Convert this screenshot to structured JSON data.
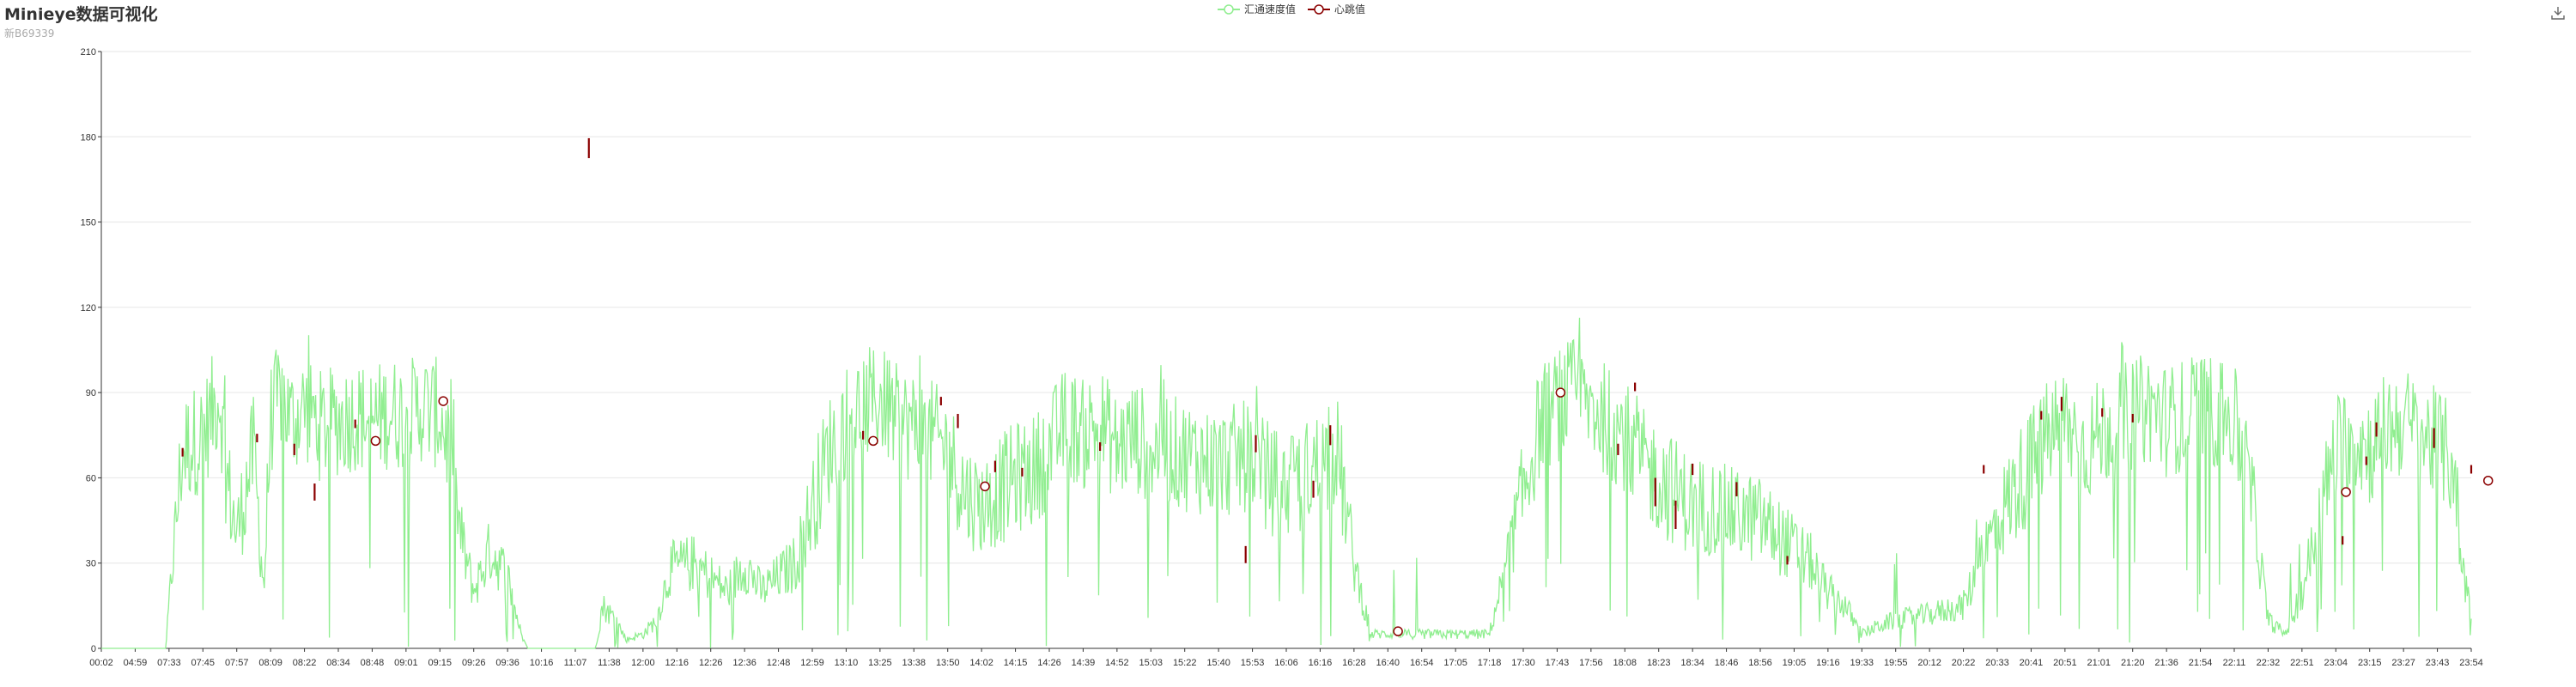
{
  "title": "Minieye数据可视化",
  "subtitle": "新B69339",
  "toolbox": {
    "icon": "download-icon"
  },
  "colors": {
    "speed": "#90ee90",
    "heart": "#8b0000",
    "grid": "#e6e6e6",
    "axis": "#333333"
  },
  "chart_data": {
    "type": "line",
    "legend": [
      "汇通速度值",
      "心跳值"
    ],
    "legend_position": "top-center",
    "grid": true,
    "ylim": [
      0,
      210
    ],
    "yticks": [
      0,
      30,
      60,
      90,
      120,
      150,
      180,
      210
    ],
    "x_tick_labels": [
      "00:02",
      "04:59",
      "07:33",
      "07:45",
      "07:57",
      "08:09",
      "08:22",
      "08:34",
      "08:48",
      "09:01",
      "09:15",
      "09:26",
      "09:36",
      "10:16",
      "11:07",
      "11:38",
      "12:00",
      "12:16",
      "12:26",
      "12:36",
      "12:48",
      "12:59",
      "13:10",
      "13:25",
      "13:38",
      "13:50",
      "14:02",
      "14:15",
      "14:26",
      "14:39",
      "14:52",
      "15:03",
      "15:22",
      "15:40",
      "15:53",
      "16:06",
      "16:16",
      "16:28",
      "16:40",
      "16:54",
      "17:05",
      "17:18",
      "17:30",
      "17:43",
      "17:56",
      "18:08",
      "18:23",
      "18:34",
      "18:46",
      "18:56",
      "19:05",
      "19:16",
      "19:33",
      "19:55",
      "20:12",
      "20:22",
      "20:33",
      "20:41",
      "20:51",
      "21:01",
      "21:20",
      "21:36",
      "21:54",
      "22:11",
      "22:32",
      "22:51",
      "23:04",
      "23:15",
      "23:27",
      "23:43",
      "23:54"
    ],
    "series": [
      {
        "name": "汇通速度值",
        "color": "#90ee90",
        "profile": [
          [
            0,
            0
          ],
          [
            1.9,
            0
          ],
          [
            2.1,
            30
          ],
          [
            2.4,
            70
          ],
          [
            3,
            75
          ],
          [
            3.5,
            90
          ],
          [
            3.7,
            60
          ],
          [
            4,
            40
          ],
          [
            4.5,
            70
          ],
          [
            4.8,
            20
          ],
          [
            5,
            80
          ],
          [
            5.3,
            90
          ],
          [
            5.6,
            80
          ],
          [
            6,
            85
          ],
          [
            6.5,
            78
          ],
          [
            7,
            80
          ],
          [
            7.5,
            82
          ],
          [
            8,
            80
          ],
          [
            8.5,
            83
          ],
          [
            9,
            82
          ],
          [
            9.5,
            85
          ],
          [
            10,
            82
          ],
          [
            10.3,
            70
          ],
          [
            10.6,
            40
          ],
          [
            11,
            20
          ],
          [
            11.5,
            35
          ],
          [
            12,
            25
          ],
          [
            12.4,
            5
          ],
          [
            12.6,
            0
          ],
          [
            14.6,
            0
          ],
          [
            14.8,
            15
          ],
          [
            15.2,
            10
          ],
          [
            15.5,
            3
          ],
          [
            16,
            5
          ],
          [
            16.4,
            10
          ],
          [
            16.8,
            28
          ],
          [
            17.5,
            30
          ],
          [
            18,
            25
          ],
          [
            18.5,
            20
          ],
          [
            19,
            30
          ],
          [
            19.5,
            20
          ],
          [
            20,
            25
          ],
          [
            20.5,
            30
          ],
          [
            21,
            50
          ],
          [
            21.5,
            70
          ],
          [
            22,
            80
          ],
          [
            22.5,
            85
          ],
          [
            23,
            88
          ],
          [
            23.5,
            80
          ],
          [
            24,
            78
          ],
          [
            24.5,
            75
          ],
          [
            25,
            70
          ],
          [
            25.5,
            55
          ],
          [
            26,
            50
          ],
          [
            26.5,
            55
          ],
          [
            27,
            60
          ],
          [
            27.5,
            62
          ],
          [
            28,
            70
          ],
          [
            28.5,
            80
          ],
          [
            29,
            75
          ],
          [
            29.5,
            80
          ],
          [
            30,
            70
          ],
          [
            30.5,
            75
          ],
          [
            31,
            70
          ],
          [
            31.5,
            70
          ],
          [
            32,
            68
          ],
          [
            33,
            65
          ],
          [
            34,
            68
          ],
          [
            34.5,
            60
          ],
          [
            35,
            55
          ],
          [
            35.5,
            60
          ],
          [
            36,
            65
          ],
          [
            36.5,
            70
          ],
          [
            37,
            30
          ],
          [
            37.5,
            5
          ],
          [
            38,
            5
          ],
          [
            39,
            5
          ],
          [
            40,
            5
          ],
          [
            41,
            5
          ],
          [
            41.5,
            30
          ],
          [
            42,
            55
          ],
          [
            42.5,
            80
          ],
          [
            43,
            85
          ],
          [
            43.5,
            90
          ],
          [
            44,
            85
          ],
          [
            44.5,
            80
          ],
          [
            45,
            75
          ],
          [
            45.5,
            65
          ],
          [
            46,
            60
          ],
          [
            46.5,
            55
          ],
          [
            47,
            50
          ],
          [
            47.5,
            50
          ],
          [
            48,
            48
          ],
          [
            49,
            45
          ],
          [
            49.5,
            40
          ],
          [
            50,
            35
          ],
          [
            50.5,
            30
          ],
          [
            51,
            20
          ],
          [
            51.5,
            15
          ],
          [
            52,
            5
          ],
          [
            52.5,
            8
          ],
          [
            53,
            10
          ],
          [
            54,
            12
          ],
          [
            55,
            15
          ],
          [
            55.5,
            30
          ],
          [
            56,
            45
          ],
          [
            56.5,
            55
          ],
          [
            57,
            65
          ],
          [
            57.5,
            75
          ],
          [
            58,
            80
          ],
          [
            58.5,
            70
          ],
          [
            59,
            75
          ],
          [
            59.5,
            80
          ],
          [
            60,
            82
          ],
          [
            60.5,
            85
          ],
          [
            61,
            80
          ],
          [
            61.5,
            82
          ],
          [
            62,
            85
          ],
          [
            63,
            80
          ],
          [
            63.5,
            55
          ],
          [
            64,
            10
          ],
          [
            64.5,
            5
          ],
          [
            65,
            20
          ],
          [
            65.5,
            45
          ],
          [
            66,
            70
          ],
          [
            66.5,
            75
          ],
          [
            67,
            70
          ],
          [
            67.5,
            78
          ],
          [
            68,
            80
          ],
          [
            68.5,
            75
          ],
          [
            69,
            72
          ],
          [
            69.5,
            65
          ],
          [
            69.7,
            30
          ],
          [
            70,
            15
          ],
          [
            70.5,
            20
          ]
        ]
      },
      {
        "name": "心跳值",
        "color": "#8b0000",
        "circles": [
          [
            8.1,
            73
          ],
          [
            10.1,
            87
          ],
          [
            22.8,
            73
          ],
          [
            26.1,
            57
          ],
          [
            38.3,
            6
          ],
          [
            43.1,
            90
          ],
          [
            66.3,
            55
          ],
          [
            70.5,
            59
          ]
        ],
        "marks": [
          [
            2.4,
            69,
            3
          ],
          [
            4.6,
            74,
            3
          ],
          [
            5.7,
            70,
            4
          ],
          [
            6.3,
            55,
            6
          ],
          [
            7.5,
            79,
            3
          ],
          [
            14.4,
            176,
            7
          ],
          [
            22.5,
            75,
            3
          ],
          [
            24.8,
            87,
            3
          ],
          [
            25.3,
            80,
            5
          ],
          [
            26.4,
            64,
            4
          ],
          [
            27.2,
            62,
            3
          ],
          [
            29.5,
            71,
            3
          ],
          [
            33.8,
            33,
            6
          ],
          [
            34.1,
            72,
            6
          ],
          [
            35.8,
            56,
            6
          ],
          [
            36.3,
            75,
            7
          ],
          [
            44.8,
            70,
            4
          ],
          [
            45.3,
            92,
            3
          ],
          [
            45.9,
            55,
            10
          ],
          [
            46.5,
            47,
            10
          ],
          [
            47.0,
            63,
            4
          ],
          [
            48.3,
            56,
            5
          ],
          [
            49.8,
            31,
            3
          ],
          [
            55.6,
            63,
            3
          ],
          [
            57.3,
            82,
            3
          ],
          [
            57.9,
            86,
            5
          ],
          [
            59.1,
            83,
            3
          ],
          [
            60.0,
            81,
            3
          ],
          [
            66.9,
            66,
            3
          ],
          [
            67.2,
            77,
            5
          ],
          [
            68.9,
            74,
            7
          ],
          [
            70.0,
            63,
            3
          ],
          [
            66.2,
            38,
            3
          ]
        ]
      }
    ]
  }
}
